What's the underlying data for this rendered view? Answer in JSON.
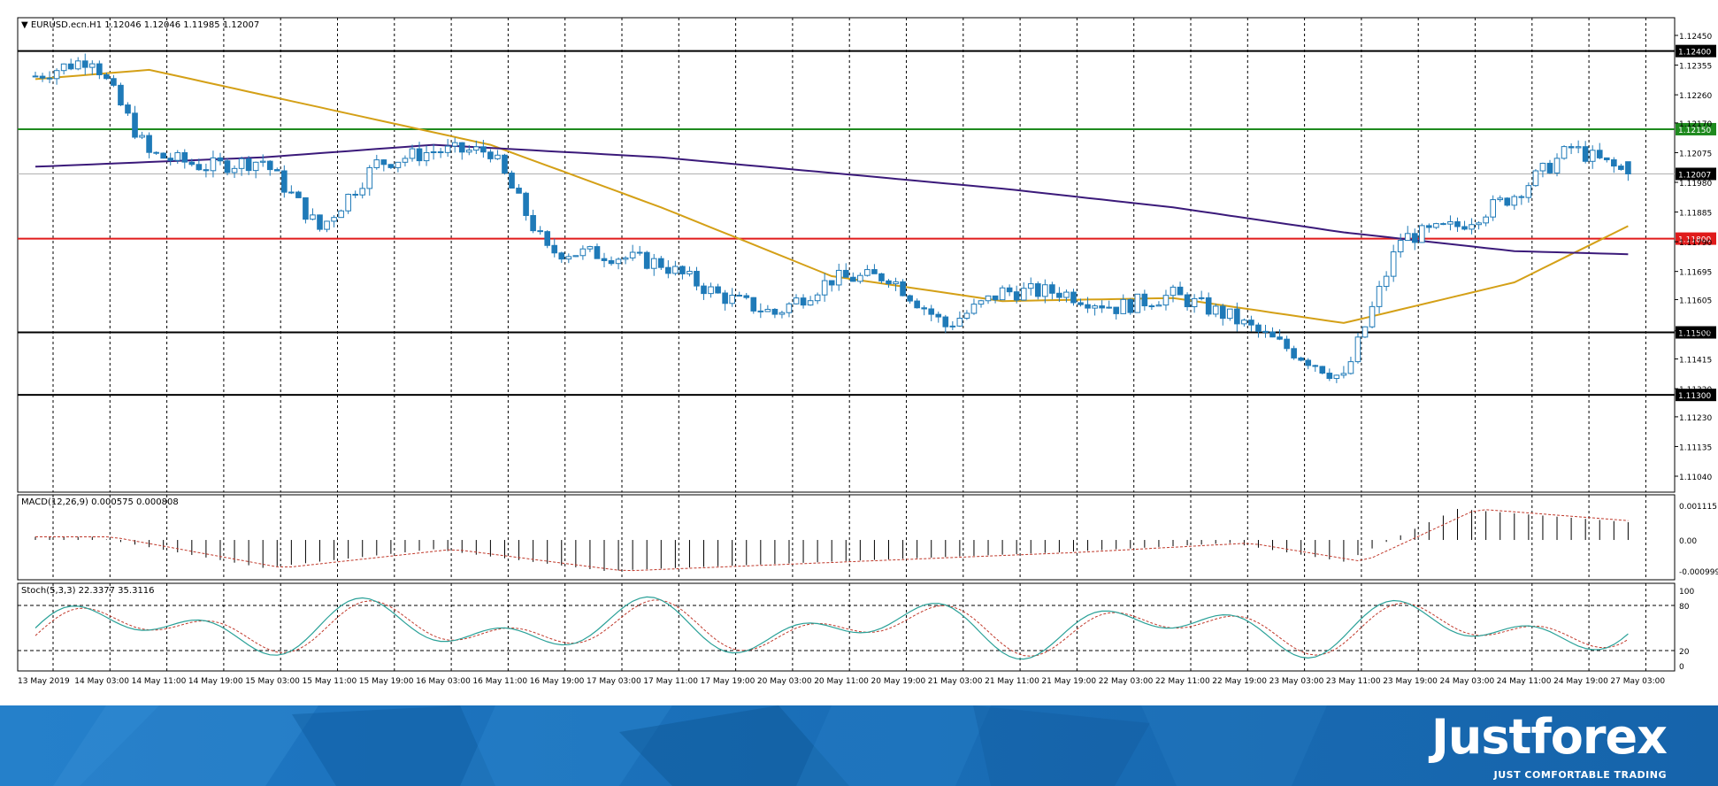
{
  "main_panel": {
    "info": "▼ EURUSD.ecn.H1  1.12046 1.12046 1.11985 1.12007",
    "price_ticks": [
      "1.12450",
      "1.12355",
      "1.12260",
      "1.12170",
      "1.12075",
      "1.11980",
      "1.11885",
      "1.11790",
      "1.11695",
      "1.11605",
      "1.11505",
      "1.11415",
      "1.11320",
      "1.11230",
      "1.11135",
      "1.11040"
    ]
  },
  "levels": [
    {
      "name": "level-1.12400",
      "label": "1.12400",
      "price": 1.124,
      "color": "#000000"
    },
    {
      "name": "level-1.12150",
      "label": "1.12150",
      "price": 1.1215,
      "color": "#1e8a1e"
    },
    {
      "name": "level-1.11800",
      "label": "1.11800",
      "price": 1.118,
      "color": "#e01b1b"
    },
    {
      "name": "level-1.11500",
      "label": "1.11500",
      "price": 1.115,
      "color": "#000000"
    },
    {
      "name": "level-1.11300",
      "label": "1.11300",
      "price": 1.113,
      "color": "#000000"
    }
  ],
  "current_price": {
    "label": "1.12007",
    "price": 1.12007
  },
  "macd_panel": {
    "info": "MACD(12,26,9) 0.000575 0.000808",
    "ticks": [
      "0.001115",
      "0.00",
      "-0.000999"
    ]
  },
  "stoch_panel": {
    "info": "Stoch(5,3,3) 22.3377 35.3116",
    "ticks": [
      "100",
      "80",
      "20",
      "0"
    ]
  },
  "time_labels": [
    "13 May 2019",
    "14 May 03:00",
    "14 May 11:00",
    "14 May 19:00",
    "15 May 03:00",
    "15 May 11:00",
    "15 May 19:00",
    "16 May 03:00",
    "16 May 11:00",
    "16 May 19:00",
    "17 May 03:00",
    "17 May 11:00",
    "17 May 19:00",
    "20 May 03:00",
    "20 May 11:00",
    "20 May 19:00",
    "21 May 03:00",
    "21 May 11:00",
    "21 May 19:00",
    "22 May 03:00",
    "22 May 11:00",
    "22 May 19:00",
    "23 May 03:00",
    "23 May 11:00",
    "23 May 19:00",
    "24 May 03:00",
    "24 May 11:00",
    "24 May 19:00",
    "27 May 03:00"
  ],
  "colors": {
    "bull": "#ffffff",
    "bear": "#1f7ab8",
    "candle_outline": "#1f7ab8",
    "ma_fast": "#d4a017",
    "ma_slow": "#3b1a7a",
    "stoch_main": "#2aa198",
    "stoch_signal": "#c0392b",
    "macd_signal": "#c0392b"
  },
  "chart_data": {
    "type": "candlestick",
    "symbol": "EURUSD.ecn",
    "timeframe": "H1",
    "ohlc_last": {
      "open": 1.12046,
      "high": 1.12046,
      "low": 1.11985,
      "close": 1.12007
    },
    "ylim": [
      1.1104,
      1.1245
    ],
    "close_path_key_points": [
      {
        "time": "13 May 2019",
        "close": 1.1232
      },
      {
        "time": "14 May 03:00",
        "close": 1.1238
      },
      {
        "time": "14 May 11:00",
        "close": 1.1207
      },
      {
        "time": "14 May 19:00",
        "close": 1.1203
      },
      {
        "time": "15 May 03:00",
        "close": 1.1205
      },
      {
        "time": "15 May 11:00",
        "close": 1.1183
      },
      {
        "time": "15 May 19:00",
        "close": 1.1204
      },
      {
        "time": "16 May 03:00",
        "close": 1.1208
      },
      {
        "time": "16 May 11:00",
        "close": 1.1208
      },
      {
        "time": "16 May 19:00",
        "close": 1.1176
      },
      {
        "time": "17 May 03:00",
        "close": 1.1175
      },
      {
        "time": "17 May 11:00",
        "close": 1.1172
      },
      {
        "time": "17 May 19:00",
        "close": 1.1162
      },
      {
        "time": "20 May 03:00",
        "close": 1.1156
      },
      {
        "time": "20 May 11:00",
        "close": 1.1167
      },
      {
        "time": "20 May 19:00",
        "close": 1.1168
      },
      {
        "time": "21 May 03:00",
        "close": 1.1152
      },
      {
        "time": "21 May 11:00",
        "close": 1.1163
      },
      {
        "time": "21 May 19:00",
        "close": 1.1163
      },
      {
        "time": "22 May 03:00",
        "close": 1.1158
      },
      {
        "time": "22 May 11:00",
        "close": 1.1162
      },
      {
        "time": "22 May 19:00",
        "close": 1.1155
      },
      {
        "time": "23 May 03:00",
        "close": 1.1145
      },
      {
        "time": "23 May 11:00",
        "close": 1.1135
      },
      {
        "time": "23 May 19:00",
        "close": 1.118
      },
      {
        "time": "24 May 03:00",
        "close": 1.1184
      },
      {
        "time": "24 May 11:00",
        "close": 1.1194
      },
      {
        "time": "24 May 19:00",
        "close": 1.1209
      },
      {
        "time": "27 May 03:00",
        "close": 1.12007
      }
    ],
    "ma_fast_key_points": [
      {
        "time": "13 May 2019",
        "value": 1.1231
      },
      {
        "time": "14 May 11:00",
        "value": 1.1234
      },
      {
        "time": "15 May 11:00",
        "value": 1.1222
      },
      {
        "time": "16 May 11:00",
        "value": 1.121
      },
      {
        "time": "17 May 11:00",
        "value": 1.119
      },
      {
        "time": "20 May 11:00",
        "value": 1.1168
      },
      {
        "time": "21 May 11:00",
        "value": 1.116
      },
      {
        "time": "22 May 11:00",
        "value": 1.1161
      },
      {
        "time": "23 May 11:00",
        "value": 1.1153
      },
      {
        "time": "24 May 11:00",
        "value": 1.1166
      },
      {
        "time": "27 May 03:00",
        "value": 1.1184
      }
    ],
    "ma_slow_key_points": [
      {
        "time": "13 May 2019",
        "value": 1.1203
      },
      {
        "time": "15 May 03:00",
        "value": 1.1206
      },
      {
        "time": "16 May 03:00",
        "value": 1.121
      },
      {
        "time": "17 May 11:00",
        "value": 1.1206
      },
      {
        "time": "20 May 11:00",
        "value": 1.1201
      },
      {
        "time": "21 May 11:00",
        "value": 1.1196
      },
      {
        "time": "22 May 11:00",
        "value": 1.119
      },
      {
        "time": "23 May 11:00",
        "value": 1.1182
      },
      {
        "time": "24 May 11:00",
        "value": 1.1176
      },
      {
        "time": "27 May 03:00",
        "value": 1.1175
      }
    ],
    "macd_key_points": [
      {
        "time": "14 May 03:00",
        "value": 0.0001
      },
      {
        "time": "15 May 03:00",
        "value": -0.0009
      },
      {
        "time": "16 May 03:00",
        "value": -0.0003
      },
      {
        "time": "17 May 03:00",
        "value": -0.001
      },
      {
        "time": "20 May 11:00",
        "value": -0.0007
      },
      {
        "time": "21 May 19:00",
        "value": -0.0004
      },
      {
        "time": "22 May 19:00",
        "value": -0.0001
      },
      {
        "time": "23 May 11:00",
        "value": -0.0007
      },
      {
        "time": "24 May 03:00",
        "value": 0.001
      },
      {
        "time": "27 May 03:00",
        "value": 0.000575
      }
    ],
    "macd_ylim": [
      -0.000999,
      0.001115
    ],
    "stoch_ylim": [
      0,
      100
    ],
    "stoch_levels": [
      20,
      80
    ]
  }
}
